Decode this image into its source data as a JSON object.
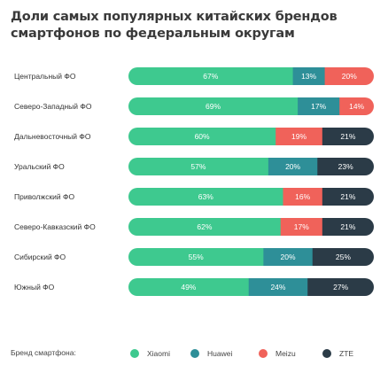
{
  "title": "Доли самых популярных китайских брендов смартфонов по федеральным округам",
  "legend": {
    "title": "Бренд смартфона:",
    "items": [
      {
        "name": "Xiaomi",
        "color": "#3ec98f"
      },
      {
        "name": "Huawei",
        "color": "#2e8f98"
      },
      {
        "name": "Meizu",
        "color": "#f0625a"
      },
      {
        "name": "ZTE",
        "color": "#2b3b47"
      }
    ]
  },
  "chart_data": {
    "type": "bar",
    "stacked": true,
    "orientation": "horizontal",
    "categories": [
      "Центральный ФО",
      "Северо-Западный ФО",
      "Дальневосточный ФО",
      "Уральский ФО",
      "Приволжский ФО",
      "Северо-Кавказский ФО",
      "Сибирский ФО",
      "Южный ФО"
    ],
    "series": [
      {
        "name": "Xiaomi",
        "color": "#3ec98f",
        "values": [
          67,
          69,
          60,
          57,
          63,
          62,
          55,
          49
        ]
      },
      {
        "name": "Huawei",
        "color": "#2e8f98",
        "values": [
          13,
          17,
          0,
          20,
          0,
          0,
          20,
          24
        ]
      },
      {
        "name": "Meizu",
        "color": "#f0625a",
        "values": [
          20,
          14,
          19,
          0,
          16,
          17,
          0,
          0
        ]
      },
      {
        "name": "ZTE",
        "color": "#2b3b47",
        "values": [
          0,
          0,
          21,
          23,
          21,
          21,
          25,
          27
        ]
      }
    ],
    "labels": [
      [
        "67%",
        "13%",
        "20%",
        ""
      ],
      [
        "69%",
        "17%",
        "14%",
        ""
      ],
      [
        "60%",
        "",
        "19%",
        "21%"
      ],
      [
        "57%",
        "20%",
        "",
        "23%"
      ],
      [
        "63%",
        "",
        "16%",
        "21%"
      ],
      [
        "62%",
        "",
        "17%",
        "21%"
      ],
      [
        "55%",
        "20%",
        "",
        "25%"
      ],
      [
        "49%",
        "24%",
        "",
        "27%"
      ]
    ],
    "xlim": [
      0,
      100
    ],
    "grid": false,
    "legend_position": "bottom"
  }
}
